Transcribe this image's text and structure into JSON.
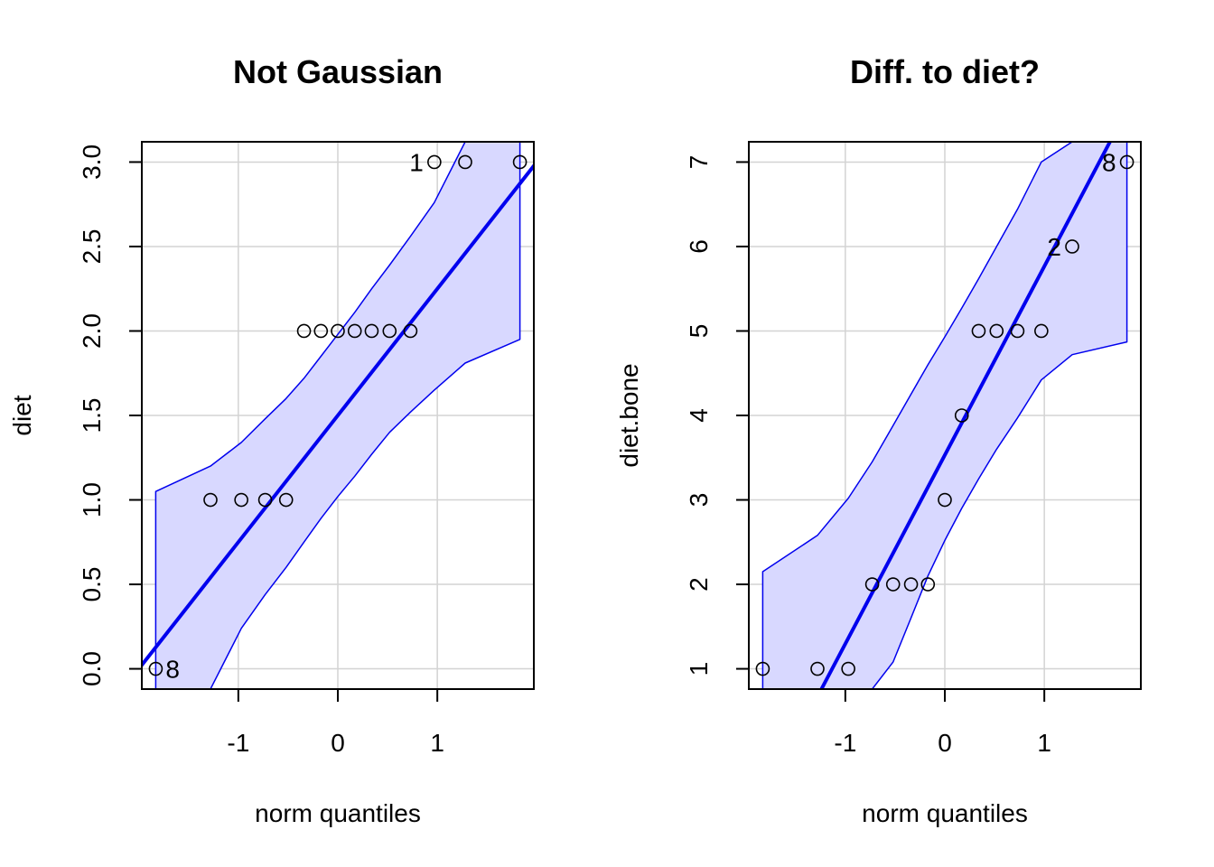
{
  "chart_data": [
    {
      "type": "scatter",
      "title": "Not Gaussian",
      "xlabel": "norm quantiles",
      "ylabel": "diet",
      "xlim": [
        -1.97,
        1.97
      ],
      "ylim": [
        -0.12,
        3.12
      ],
      "x_ticks": [
        -1,
        0,
        1
      ],
      "x_tick_labels": [
        "-1",
        "0",
        "1"
      ],
      "y_ticks": [
        0,
        0.5,
        1,
        1.5,
        2,
        2.5,
        3
      ],
      "y_tick_labels": [
        "0.0",
        "0.5",
        "1.0",
        "1.5",
        "2.0",
        "2.5",
        "3.0"
      ],
      "grid": true,
      "colors": {
        "line": "#0000ee",
        "band": "#d8d8ff",
        "points": "#000000",
        "grid": "#d3d3d3"
      },
      "points": [
        {
          "x": -1.83,
          "y": 0
        },
        {
          "x": -1.28,
          "y": 1
        },
        {
          "x": -0.97,
          "y": 1
        },
        {
          "x": -0.73,
          "y": 1
        },
        {
          "x": -0.52,
          "y": 1
        },
        {
          "x": -0.34,
          "y": 2
        },
        {
          "x": -0.17,
          "y": 2
        },
        {
          "x": 0.0,
          "y": 2
        },
        {
          "x": 0.17,
          "y": 2
        },
        {
          "x": 0.34,
          "y": 2
        },
        {
          "x": 0.52,
          "y": 2
        },
        {
          "x": 0.73,
          "y": 2
        },
        {
          "x": 0.97,
          "y": 3
        },
        {
          "x": 1.28,
          "y": 3
        },
        {
          "x": 1.83,
          "y": 3
        }
      ],
      "point_labels": [
        {
          "text": "1",
          "x": 0.97,
          "y": 3,
          "side": "left"
        },
        {
          "text": "8",
          "x": -1.83,
          "y": 0,
          "side": "right"
        }
      ],
      "reference_line": [
        {
          "x": -2.0,
          "y": 0.0
        },
        {
          "x": 2.0,
          "y": 3.0
        }
      ],
      "band_upper": [
        {
          "x": -1.83,
          "y": 1.05
        },
        {
          "x": -1.28,
          "y": 1.2
        },
        {
          "x": -0.97,
          "y": 1.34
        },
        {
          "x": -0.73,
          "y": 1.48
        },
        {
          "x": -0.52,
          "y": 1.6
        },
        {
          "x": -0.34,
          "y": 1.72
        },
        {
          "x": -0.17,
          "y": 1.85
        },
        {
          "x": 0.0,
          "y": 1.98
        },
        {
          "x": 0.17,
          "y": 2.11
        },
        {
          "x": 0.34,
          "y": 2.25
        },
        {
          "x": 0.52,
          "y": 2.39
        },
        {
          "x": 0.73,
          "y": 2.56
        },
        {
          "x": 0.97,
          "y": 2.76
        },
        {
          "x": 1.28,
          "y": 3.12
        },
        {
          "x": 1.83,
          "y": 3.12
        }
      ],
      "band_lower": [
        {
          "x": -1.83,
          "y": -0.12
        },
        {
          "x": -1.28,
          "y": -0.12
        },
        {
          "x": -0.97,
          "y": 0.24
        },
        {
          "x": -0.73,
          "y": 0.44
        },
        {
          "x": -0.52,
          "y": 0.6
        },
        {
          "x": -0.34,
          "y": 0.75
        },
        {
          "x": -0.17,
          "y": 0.89
        },
        {
          "x": 0.0,
          "y": 1.02
        },
        {
          "x": 0.17,
          "y": 1.14
        },
        {
          "x": 0.34,
          "y": 1.27
        },
        {
          "x": 0.52,
          "y": 1.4
        },
        {
          "x": 0.73,
          "y": 1.52
        },
        {
          "x": 0.97,
          "y": 1.65
        },
        {
          "x": 1.28,
          "y": 1.81
        },
        {
          "x": 1.83,
          "y": 1.95
        }
      ]
    },
    {
      "type": "scatter",
      "title": "Diff. to diet?",
      "xlabel": "norm quantiles",
      "ylabel": "diet.bone",
      "xlim": [
        -1.97,
        1.97
      ],
      "ylim": [
        0.76,
        7.24
      ],
      "x_ticks": [
        -1,
        0,
        1
      ],
      "x_tick_labels": [
        "-1",
        "0",
        "1"
      ],
      "y_ticks": [
        1,
        2,
        3,
        4,
        5,
        6,
        7
      ],
      "y_tick_labels": [
        "1",
        "2",
        "3",
        "4",
        "5",
        "6",
        "7"
      ],
      "grid": true,
      "colors": {
        "line": "#0000ee",
        "band": "#d8d8ff",
        "points": "#000000",
        "grid": "#d3d3d3"
      },
      "points": [
        {
          "x": -1.83,
          "y": 1
        },
        {
          "x": -1.28,
          "y": 1
        },
        {
          "x": -0.97,
          "y": 1
        },
        {
          "x": -0.73,
          "y": 2
        },
        {
          "x": -0.52,
          "y": 2
        },
        {
          "x": -0.34,
          "y": 2
        },
        {
          "x": -0.17,
          "y": 2
        },
        {
          "x": 0.0,
          "y": 3
        },
        {
          "x": 0.17,
          "y": 4
        },
        {
          "x": 0.34,
          "y": 5
        },
        {
          "x": 0.52,
          "y": 5
        },
        {
          "x": 0.73,
          "y": 5
        },
        {
          "x": 0.97,
          "y": 5
        },
        {
          "x": 1.28,
          "y": 6
        },
        {
          "x": 1.83,
          "y": 7
        }
      ],
      "point_labels": [
        {
          "text": "2",
          "x": 1.28,
          "y": 6,
          "side": "left"
        },
        {
          "text": "8",
          "x": 1.83,
          "y": 7,
          "side": "left"
        }
      ],
      "reference_line": [
        {
          "x": -1.24,
          "y": 0.76
        },
        {
          "x": 1.66,
          "y": 7.24
        }
      ],
      "band_upper": [
        {
          "x": -1.83,
          "y": 2.15
        },
        {
          "x": -1.28,
          "y": 2.58
        },
        {
          "x": -0.97,
          "y": 3.02
        },
        {
          "x": -0.73,
          "y": 3.45
        },
        {
          "x": -0.52,
          "y": 3.88
        },
        {
          "x": -0.34,
          "y": 4.25
        },
        {
          "x": -0.17,
          "y": 4.6
        },
        {
          "x": 0.0,
          "y": 4.93
        },
        {
          "x": 0.17,
          "y": 5.27
        },
        {
          "x": 0.34,
          "y": 5.62
        },
        {
          "x": 0.52,
          "y": 6.0
        },
        {
          "x": 0.73,
          "y": 6.44
        },
        {
          "x": 0.97,
          "y": 7.0
        },
        {
          "x": 1.28,
          "y": 7.24
        },
        {
          "x": 1.83,
          "y": 7.24
        }
      ],
      "band_lower": [
        {
          "x": -1.83,
          "y": 0.76
        },
        {
          "x": -1.28,
          "y": 0.76
        },
        {
          "x": -0.97,
          "y": 0.76
        },
        {
          "x": -0.73,
          "y": 0.76
        },
        {
          "x": -0.52,
          "y": 1.08
        },
        {
          "x": -0.34,
          "y": 1.6
        },
        {
          "x": -0.17,
          "y": 2.1
        },
        {
          "x": 0.0,
          "y": 2.52
        },
        {
          "x": 0.17,
          "y": 2.9
        },
        {
          "x": 0.34,
          "y": 3.25
        },
        {
          "x": 0.52,
          "y": 3.6
        },
        {
          "x": 0.73,
          "y": 3.97
        },
        {
          "x": 0.97,
          "y": 4.42
        },
        {
          "x": 1.28,
          "y": 4.72
        },
        {
          "x": 1.83,
          "y": 4.87
        }
      ]
    }
  ]
}
